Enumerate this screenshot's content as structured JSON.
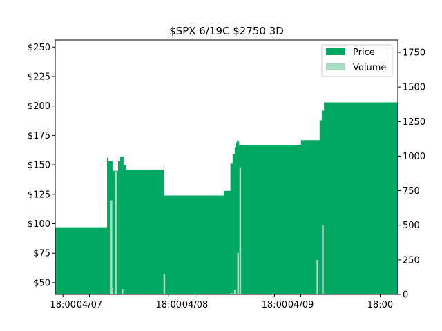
{
  "chart_data": {
    "type": "area",
    "title": "$SPX 6/19C $2750 3D",
    "x_ticks": [
      "18:00",
      "04/07",
      "18:00",
      "04/08",
      "18:00",
      "04/09",
      "18:00"
    ],
    "y_left": {
      "ylim": [
        40,
        256
      ],
      "ticks": [
        "$50",
        "$75",
        "$100",
        "$125",
        "$150",
        "$175",
        "$200",
        "$225",
        "$250"
      ]
    },
    "y_right": {
      "ylim": [
        0,
        1840
      ],
      "ticks": [
        "0",
        "250",
        "500",
        "750",
        "1000",
        "1250",
        "1500",
        "1750"
      ]
    },
    "legend": {
      "placement": "top-right",
      "entries": [
        "Price",
        "Volume"
      ]
    },
    "colors": {
      "price": "#00a862",
      "volume": "#a8dcc3"
    },
    "series": [
      {
        "name": "Price",
        "x": [
          "04/06 16:45",
          "04/07 04:00",
          "04/07 04:15",
          "04/07 05:15",
          "04/07 06:30",
          "04/07 07:00",
          "04/07 07:45",
          "04/07 08:15",
          "04/07 08:45",
          "04/07 17:00",
          "04/08 03:45",
          "04/08 06:30",
          "04/08 08:00",
          "04/08 08:30",
          "04/08 09:00",
          "04/08 09:15",
          "04/08 09:30",
          "04/08 09:45",
          "04/08 10:00",
          "04/08 10:30",
          "04/09 00:00",
          "04/09 04:15",
          "04/09 04:45",
          "04/09 05:15",
          "04/09 20:00"
        ],
        "values": [
          97,
          156,
          153,
          145,
          153,
          157,
          150,
          146,
          146,
          124,
          124,
          128,
          151,
          159,
          165,
          169,
          171,
          170,
          167,
          167,
          171,
          188,
          196,
          203,
          203
        ]
      },
      {
        "name": "Volume",
        "x": [
          "04/07 05:00",
          "04/07 05:15",
          "04/07 06:00",
          "04/07 07:30",
          "04/07 17:00",
          "04/08 08:15",
          "04/08 09:00",
          "04/08 09:45",
          "04/08 10:15",
          "04/09 03:45",
          "04/09 05:00"
        ],
        "values": [
          680,
          50,
          890,
          40,
          150,
          10,
          30,
          300,
          920,
          250,
          500
        ]
      }
    ]
  }
}
